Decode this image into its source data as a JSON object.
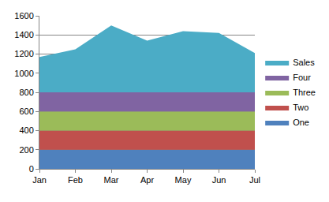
{
  "chart_data": {
    "type": "area",
    "categories": [
      "Jan",
      "Feb",
      "Mar",
      "Apr",
      "May",
      "Jun",
      "Jul"
    ],
    "series": [
      {
        "name": "One",
        "color": "#4F81BD",
        "values": [
          200,
          200,
          200,
          200,
          200,
          200,
          200
        ]
      },
      {
        "name": "Two",
        "color": "#C0504D",
        "values": [
          200,
          200,
          200,
          200,
          200,
          200,
          200
        ]
      },
      {
        "name": "Three",
        "color": "#9BBB59",
        "values": [
          200,
          200,
          200,
          200,
          200,
          200,
          200
        ]
      },
      {
        "name": "Four",
        "color": "#8064A2",
        "values": [
          200,
          200,
          200,
          200,
          200,
          200,
          200
        ]
      },
      {
        "name": "Sales",
        "color": "#4BACC6",
        "values": [
          370,
          450,
          700,
          540,
          640,
          620,
          410
        ]
      }
    ],
    "ylim": [
      0,
      1600
    ],
    "yticks": [
      0,
      200,
      400,
      600,
      800,
      1000,
      1200,
      1400,
      1600
    ],
    "grid": true,
    "stacked": true,
    "legend": "right"
  }
}
